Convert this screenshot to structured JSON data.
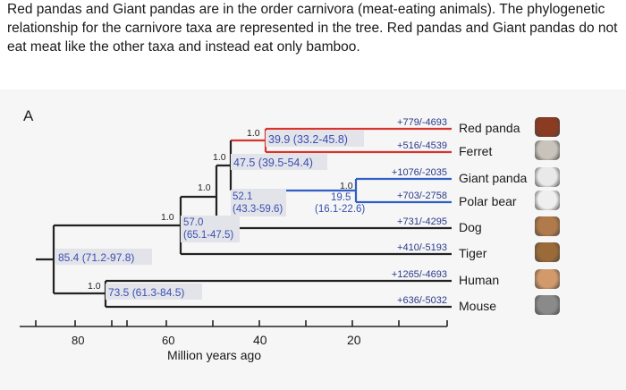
{
  "question": {
    "text": "Red pandas and Giant pandas are in the order carnivora (meat-eating animals). The phylogenetic relationship for the carnivore taxa are represented in the tree. Red pandas and Giant pandas do not eat meat like the other taxa and instead eat only bamboo."
  },
  "figure": {
    "panel_label": "A",
    "axis_label": "Million years ago",
    "axis_ticks": [
      "80",
      "60",
      "40",
      "20"
    ],
    "taxa": [
      {
        "name": "Red panda",
        "branch_label": "+779/-4693",
        "color": "#d6342f"
      },
      {
        "name": "Ferret",
        "branch_label": "+516/-4539",
        "color": "#d6342f"
      },
      {
        "name": "Giant panda",
        "branch_label": "+1076/-2035",
        "color": "#2f5fc4"
      },
      {
        "name": "Polar bear",
        "branch_label": "+703/-2758",
        "color": "#2f5fc4"
      },
      {
        "name": "Dog",
        "branch_label": "+731/-4295",
        "color": "#222222"
      },
      {
        "name": "Tiger",
        "branch_label": "+410/-5193",
        "color": "#222222"
      },
      {
        "name": "Human",
        "branch_label": "+1265/-4693",
        "color": "#222222"
      },
      {
        "name": "Mouse",
        "branch_label": "+636/-5032",
        "color": "#222222"
      }
    ],
    "nodes": [
      {
        "support": "1.0",
        "age": "39.9 (33.2-45.8)",
        "color": "#d6342f"
      },
      {
        "support": "1.0",
        "age": "47.5 (39.5-54.4)",
        "color": "#222222"
      },
      {
        "support": "1.0",
        "age_a": "19.5",
        "age_b": "(16.1-22.6)",
        "color": "#2f5fc4"
      },
      {
        "support": "1.0",
        "age_a": "52.1",
        "age_b": "(43.3-59.6)",
        "color": "#2f5fc4"
      },
      {
        "support": "1.0",
        "age_a": "57.0",
        "age_b": "(65.1-47.5)",
        "color": "#2f5fc4"
      },
      {
        "support": "",
        "age": "85.4 (71.2-97.8)",
        "color": "#2f5fc4"
      },
      {
        "support": "1.0",
        "age": "73.5 (61.3-84.5)",
        "color": "#2f5fc4"
      }
    ],
    "animal_icons": [
      "red-panda-icon",
      "ferret-icon",
      "giant-panda-icon",
      "polar-bear-icon",
      "dog-icon",
      "tiger-icon",
      "human-icon",
      "mouse-icon"
    ]
  }
}
